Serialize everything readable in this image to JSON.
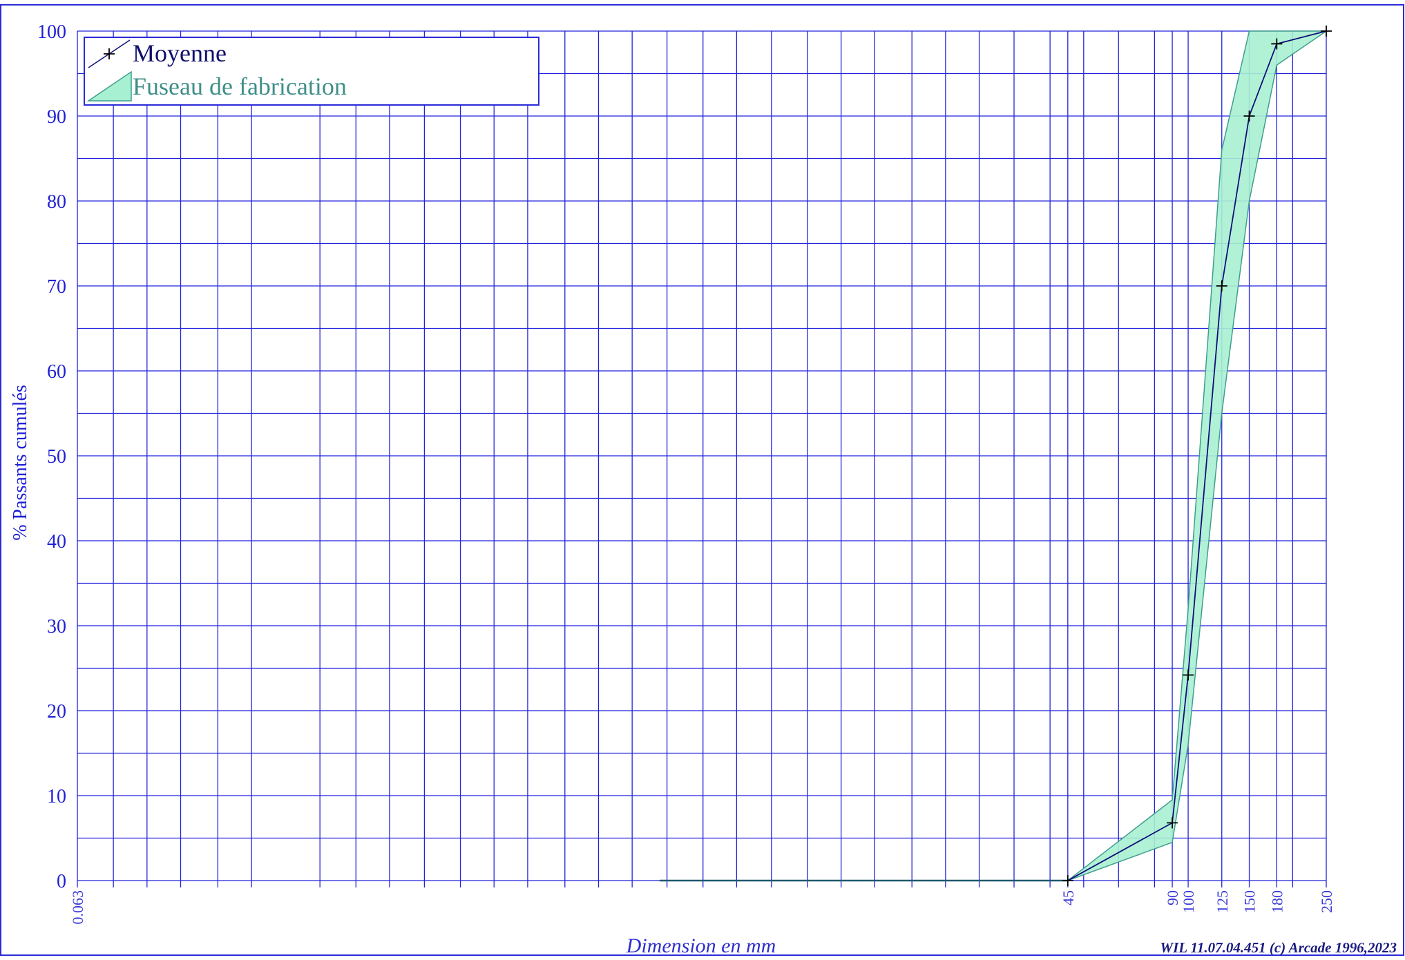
{
  "chart_data": {
    "type": "line",
    "xscale": "log",
    "xlim": [
      0.063,
      250
    ],
    "ylim": [
      0,
      100
    ],
    "grid": true,
    "legend": "top-left",
    "xlabel": "Dimension en mm",
    "ylabel": "% Passants cumulés",
    "credit": "WIL 11.07.04.451 (c) Arcade 1996,2023",
    "x_tick_labels": [
      {
        "value": 0.063,
        "label": "0.063"
      },
      {
        "value": 45,
        "label": "45"
      },
      {
        "value": 90,
        "label": "90"
      },
      {
        "value": 100,
        "label": "100"
      },
      {
        "value": 125,
        "label": "125"
      },
      {
        "value": 150,
        "label": "150"
      },
      {
        "value": 180,
        "label": "180"
      },
      {
        "value": 250,
        "label": "250"
      }
    ],
    "y_ticks": [
      0,
      10,
      20,
      30,
      40,
      50,
      60,
      70,
      80,
      90,
      100
    ],
    "x_grid": [
      0.063,
      0.08,
      0.1,
      0.125,
      0.16,
      0.2,
      0.315,
      0.4,
      0.5,
      0.63,
      0.8,
      1,
      1.25,
      1.6,
      2,
      2.5,
      3.15,
      4,
      5,
      6.3,
      8,
      10,
      12.5,
      16,
      20,
      25,
      31.5,
      40,
      45,
      50,
      63,
      80,
      90,
      100,
      125,
      150,
      180,
      200,
      250
    ],
    "series": [
      {
        "name": "Moyenne",
        "x": [
          45,
          90,
          100,
          125,
          150,
          180,
          250
        ],
        "y": [
          0,
          6.8,
          24.2,
          70.0,
          90.0,
          98.5,
          100
        ]
      },
      {
        "name": "Fuseau de fabrication",
        "kind": "band",
        "x": [
          45,
          90,
          100,
          125,
          150,
          180,
          250
        ],
        "y_low": [
          0,
          4.5,
          16,
          55,
          80,
          96,
          100
        ],
        "y_high": [
          0,
          9.5,
          32,
          86,
          100,
          100,
          100
        ]
      }
    ],
    "baseline_segment": {
      "x": [
        3,
        45
      ],
      "y": [
        0,
        0
      ]
    }
  },
  "colors": {
    "grid": "#2222dd",
    "axis_text": "#1f1fd6",
    "line": "#0f0f7a",
    "band_fill": "#a8f0d2",
    "band_stroke": "#3f9e8e"
  }
}
